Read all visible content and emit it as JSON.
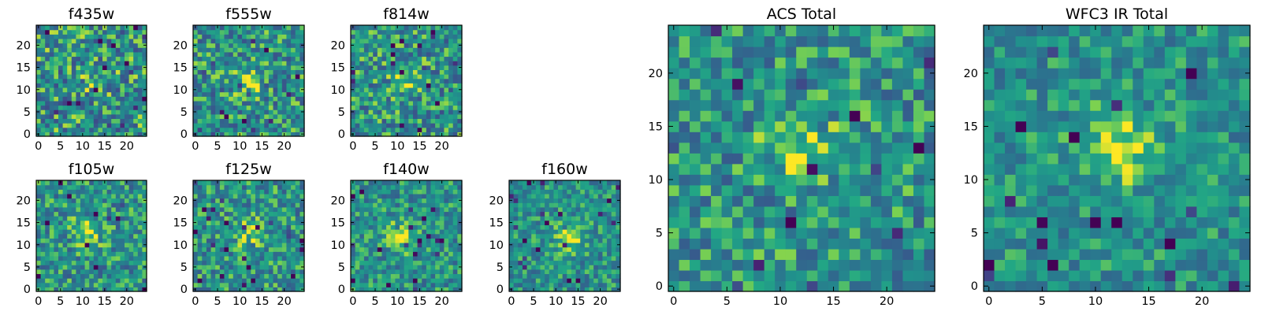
{
  "chart_data": [
    {
      "id": "f435w",
      "type": "heatmap",
      "title": "f435w",
      "colormap": "viridis",
      "grid_size": 25,
      "peak": [
        13,
        12
      ],
      "peak_strength": 0.25,
      "noise": 0.55,
      "seed": 11,
      "xlim": [
        0,
        25
      ],
      "ylim": [
        0,
        25
      ],
      "xticks": [
        0,
        5,
        10,
        15,
        20
      ],
      "yticks": [
        0,
        5,
        10,
        15,
        20
      ],
      "xticklabels": [
        "0",
        "5",
        "10",
        "15",
        "20"
      ],
      "yticklabels": [
        "0",
        "5",
        "10",
        "15",
        "20"
      ]
    },
    {
      "id": "f555w",
      "type": "heatmap",
      "title": "f555w",
      "colormap": "viridis",
      "grid_size": 25,
      "peak": [
        12,
        12
      ],
      "peak_strength": 0.4,
      "noise": 0.5,
      "seed": 23,
      "xlim": [
        0,
        25
      ],
      "ylim": [
        0,
        25
      ],
      "xticks": [
        0,
        5,
        10,
        15,
        20
      ],
      "yticks": [
        0,
        5,
        10,
        15,
        20
      ],
      "xticklabels": [
        "0",
        "5",
        "10",
        "15",
        "20"
      ],
      "yticklabels": [
        "0",
        "5",
        "10",
        "15",
        "20"
      ]
    },
    {
      "id": "f814w",
      "type": "heatmap",
      "title": "f814w",
      "colormap": "viridis",
      "grid_size": 25,
      "peak": [
        12,
        13
      ],
      "peak_strength": 0.4,
      "noise": 0.5,
      "seed": 37,
      "xlim": [
        0,
        25
      ],
      "ylim": [
        0,
        25
      ],
      "xticks": [
        0,
        5,
        10,
        15,
        20
      ],
      "yticks": [
        0,
        5,
        10,
        15,
        20
      ],
      "xticklabels": [
        "0",
        "5",
        "10",
        "15",
        "20"
      ],
      "yticklabels": [
        "0",
        "5",
        "10",
        "15",
        "20"
      ]
    },
    {
      "id": "f105w",
      "type": "heatmap",
      "title": "f105w",
      "colormap": "viridis",
      "grid_size": 25,
      "peak": [
        11,
        13
      ],
      "peak_strength": 0.45,
      "noise": 0.45,
      "seed": 41,
      "xlim": [
        0,
        25
      ],
      "ylim": [
        0,
        25
      ],
      "xticks": [
        0,
        5,
        10,
        15,
        20
      ],
      "yticks": [
        0,
        5,
        10,
        15,
        20
      ],
      "xticklabels": [
        "0",
        "5",
        "10",
        "15",
        "20"
      ],
      "yticklabels": [
        "0",
        "5",
        "10",
        "15",
        "20"
      ]
    },
    {
      "id": "f125w",
      "type": "heatmap",
      "title": "f125w",
      "colormap": "viridis",
      "grid_size": 25,
      "peak": [
        12,
        13
      ],
      "peak_strength": 0.45,
      "noise": 0.45,
      "seed": 53,
      "xlim": [
        0,
        25
      ],
      "ylim": [
        0,
        25
      ],
      "xticks": [
        0,
        5,
        10,
        15,
        20
      ],
      "yticks": [
        0,
        5,
        10,
        15,
        20
      ],
      "xticklabels": [
        "0",
        "5",
        "10",
        "15",
        "20"
      ],
      "yticklabels": [
        "0",
        "5",
        "10",
        "15",
        "20"
      ]
    },
    {
      "id": "f140w",
      "type": "heatmap",
      "title": "f140w",
      "colormap": "viridis",
      "grid_size": 25,
      "peak": [
        11,
        12
      ],
      "peak_strength": 0.6,
      "noise": 0.4,
      "seed": 67,
      "xlim": [
        0,
        25
      ],
      "ylim": [
        0,
        25
      ],
      "xticks": [
        0,
        5,
        10,
        15,
        20
      ],
      "yticks": [
        0,
        5,
        10,
        15,
        20
      ],
      "xticklabels": [
        "0",
        "5",
        "10",
        "15",
        "20"
      ],
      "yticklabels": [
        "0",
        "5",
        "10",
        "15",
        "20"
      ]
    },
    {
      "id": "f160w",
      "type": "heatmap",
      "title": "f160w",
      "colormap": "viridis",
      "grid_size": 25,
      "peak": [
        13,
        12
      ],
      "peak_strength": 0.6,
      "noise": 0.38,
      "seed": 79,
      "xlim": [
        0,
        25
      ],
      "ylim": [
        0,
        25
      ],
      "xticks": [
        0,
        5,
        10,
        15,
        20
      ],
      "yticks": [
        0,
        5,
        10,
        15,
        20
      ],
      "xticklabels": [
        "0",
        "5",
        "10",
        "15",
        "20"
      ],
      "yticklabels": [
        "0",
        "5",
        "10",
        "15",
        "20"
      ]
    },
    {
      "id": "acs_total",
      "type": "heatmap",
      "title": "ACS Total",
      "colormap": "viridis",
      "grid_size": 25,
      "peak": [
        12,
        13
      ],
      "peak_strength": 0.55,
      "noise": 0.45,
      "seed": 97,
      "xlim": [
        0,
        25
      ],
      "ylim": [
        0,
        25
      ],
      "xticks": [
        0,
        5,
        10,
        15,
        20
      ],
      "yticks": [
        0,
        5,
        10,
        15,
        20
      ],
      "xticklabels": [
        "0",
        "5",
        "10",
        "15",
        "20"
      ],
      "yticklabels": [
        "0",
        "5",
        "10",
        "15",
        "20"
      ]
    },
    {
      "id": "wfc3_ir_total",
      "type": "heatmap",
      "title": "WFC3 IR Total",
      "colormap": "viridis",
      "grid_size": 25,
      "peak": [
        12,
        13
      ],
      "peak_strength": 0.65,
      "noise": 0.35,
      "seed": 131,
      "xlim": [
        0,
        25
      ],
      "ylim": [
        0,
        25
      ],
      "xticks": [
        0,
        5,
        10,
        15,
        20
      ],
      "yticks": [
        0,
        5,
        10,
        15,
        20
      ],
      "xticklabels": [
        "0",
        "5",
        "10",
        "15",
        "20"
      ],
      "yticklabels": [
        "0",
        "5",
        "10",
        "15",
        "20"
      ]
    }
  ]
}
